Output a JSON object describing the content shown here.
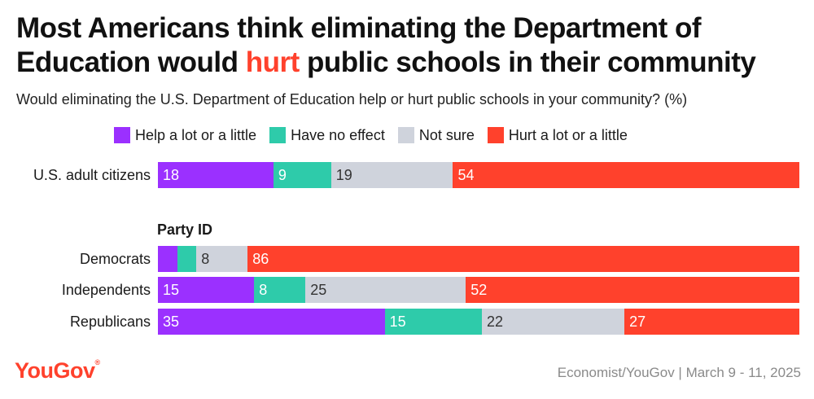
{
  "title": {
    "part1": "Most Americans think eliminating the Department of Education would ",
    "highlight": "hurt",
    "part2": " public schools in their community"
  },
  "subtitle": "Would eliminating the U.S. Department of Education help or hurt public schools in your community? (%)",
  "legend": [
    {
      "label": "Help a lot or a little",
      "color": "#9b30ff"
    },
    {
      "label": "Have no effect",
      "color": "#2ecbaa"
    },
    {
      "label": "Not sure",
      "color": "#cfd3dc"
    },
    {
      "label": "Hurt a lot or a little",
      "color": "#ff412c"
    }
  ],
  "group_label": "Party ID",
  "chart_data": {
    "type": "bar",
    "orientation": "horizontal",
    "stacked": true,
    "title": "Most Americans think eliminating the Department of Education would hurt public schools in their community",
    "xlabel": "",
    "ylabel": "",
    "categories": [
      "U.S. adult citizens",
      "Democrats",
      "Independents",
      "Republicans"
    ],
    "series": [
      {
        "name": "Help a lot or a little",
        "color": "#9b30ff",
        "values": [
          18,
          3,
          15,
          35
        ],
        "labels": [
          "18",
          "",
          "15",
          "35"
        ]
      },
      {
        "name": "Have no effect",
        "color": "#2ecbaa",
        "values": [
          9,
          3,
          8,
          15
        ],
        "labels": [
          "9",
          "",
          "8",
          "15"
        ]
      },
      {
        "name": "Not sure",
        "color": "#cfd3dc",
        "values": [
          19,
          8,
          25,
          22
        ],
        "labels": [
          "19",
          "8",
          "25",
          "22"
        ]
      },
      {
        "name": "Hurt a lot or a little",
        "color": "#ff412c",
        "values": [
          54,
          86,
          52,
          27
        ],
        "labels": [
          "54",
          "86",
          "52",
          "27"
        ]
      }
    ],
    "xlim": [
      0,
      100
    ],
    "legend_position": "top"
  },
  "footer": {
    "logo": "YouGov",
    "source": "Economist/YouGov | March 9 - 11, 2025"
  }
}
